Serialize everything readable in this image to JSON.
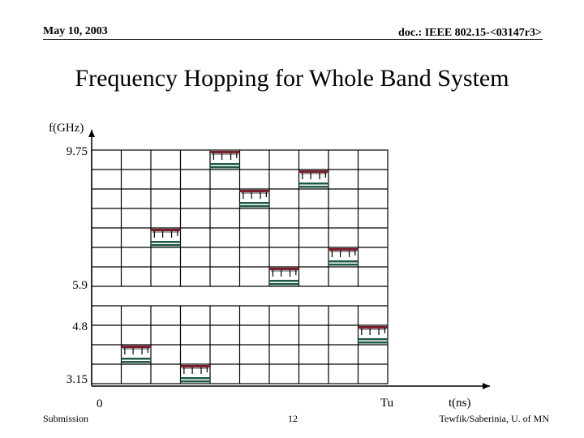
{
  "header": {
    "date": "May 10, 2003",
    "doc": "doc.: IEEE 802.15-<03147r3>"
  },
  "title": "Frequency Hopping for Whole Band System",
  "axes": {
    "y_label": "f(GHz)",
    "y_ticks": [
      "9.75",
      "5.9",
      "4.8",
      "3.15"
    ],
    "x_origin": "0",
    "x_tu": "Tu",
    "x_label": "t(ns)"
  },
  "footer": {
    "left": "Submission",
    "page": "12",
    "right": "Tewfik/Saberinia, U. of MN"
  },
  "colors": {
    "top_bar": "#7a1f2b",
    "bottom_bar": "#1f5a45"
  },
  "hops": [
    {
      "time_slot": 1,
      "band_row": 10
    },
    {
      "time_slot": 2,
      "band_row": 4
    },
    {
      "time_slot": 3,
      "band_row": 11
    },
    {
      "time_slot": 4,
      "band_row": 0
    },
    {
      "time_slot": 5,
      "band_row": 2
    },
    {
      "time_slot": 6,
      "band_row": 6
    },
    {
      "time_slot": 7,
      "band_row": 1
    },
    {
      "time_slot": 8,
      "band_row": 5
    },
    {
      "time_slot": 9,
      "band_row": 9
    }
  ]
}
